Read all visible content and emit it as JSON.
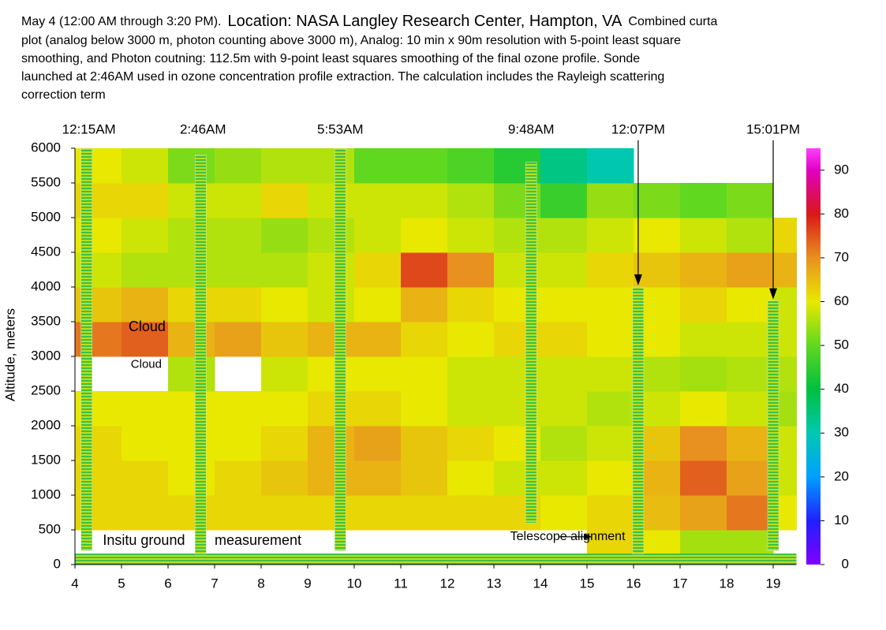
{
  "chart_data": {
    "type": "heatmap",
    "title": "May 4 (12:00 AM through 3:20 PM).",
    "location": "Location: NASA Langley Research Center, Hampton, VA",
    "title_suffix": "Combined curta",
    "description_lines": [
      "plot (analog below 3000 m, photon counting above 3000 m),  Analog: 10 min x 90m resolution with 5-point least square",
      "smoothing, and Photon coutning: 112.5m with 9-point least squares smoothing of the final ozone profile.  Sonde",
      "launched at 2:46AM used in ozone concentration profile extraction.  The calculation includes the Rayleigh scattering",
      "correction term"
    ],
    "y_label": "Altitude, meters",
    "xlim": [
      4,
      19.5
    ],
    "ylim": [
      0,
      6000
    ],
    "xticks": [
      4,
      5,
      6,
      7,
      8,
      9,
      10,
      11,
      12,
      13,
      14,
      15,
      16,
      17,
      18,
      19
    ],
    "yticks": [
      0,
      500,
      1000,
      1500,
      2000,
      2500,
      3000,
      3500,
      4000,
      4500,
      5000,
      5500,
      6000
    ],
    "x": [
      4,
      5,
      6,
      7,
      8,
      9,
      10,
      11,
      12,
      13,
      14,
      15,
      16,
      17,
      18,
      19,
      19.5
    ],
    "y": [
      0,
      500,
      1000,
      1500,
      2000,
      2500,
      3000,
      3500,
      4000,
      4500,
      5000,
      5500,
      6000
    ],
    "z": [
      [
        null,
        null,
        null,
        null,
        null,
        null,
        null,
        null,
        null,
        null,
        null,
        62,
        60,
        55,
        55,
        null
      ],
      [
        62,
        62,
        62,
        62,
        62,
        62,
        62,
        62,
        62,
        62,
        60,
        62,
        65,
        68,
        72,
        60
      ],
      [
        62,
        62,
        60,
        62,
        64,
        66,
        66,
        64,
        60,
        58,
        58,
        60,
        66,
        74,
        68,
        58
      ],
      [
        62,
        60,
        60,
        60,
        62,
        66,
        68,
        64,
        62,
        60,
        56,
        58,
        64,
        70,
        66,
        58
      ],
      [
        60,
        60,
        60,
        60,
        60,
        62,
        62,
        60,
        58,
        58,
        58,
        56,
        58,
        60,
        58,
        55
      ],
      [
        null,
        null,
        56,
        null,
        58,
        60,
        60,
        60,
        58,
        58,
        58,
        58,
        56,
        55,
        56,
        56
      ],
      [
        72,
        74,
        66,
        68,
        64,
        66,
        66,
        62,
        60,
        62,
        62,
        60,
        60,
        58,
        58,
        58
      ],
      [
        64,
        66,
        62,
        62,
        60,
        58,
        60,
        66,
        62,
        60,
        60,
        60,
        60,
        62,
        60,
        58
      ],
      [
        58,
        56,
        56,
        56,
        56,
        58,
        62,
        76,
        70,
        58,
        58,
        62,
        64,
        66,
        68,
        66
      ],
      [
        60,
        58,
        56,
        56,
        54,
        56,
        58,
        60,
        58,
        56,
        56,
        58,
        60,
        58,
        56,
        62
      ],
      [
        62,
        62,
        58,
        58,
        62,
        58,
        58,
        58,
        56,
        52,
        46,
        54,
        52,
        50,
        52,
        null
      ],
      [
        60,
        58,
        52,
        54,
        56,
        56,
        50,
        50,
        48,
        44,
        34,
        30,
        null,
        null,
        null,
        null
      ]
    ],
    "clim": [
      0,
      95
    ],
    "colorbar_ticks": [
      0,
      10,
      20,
      30,
      40,
      50,
      60,
      70,
      80,
      90
    ],
    "colorscale": [
      [
        0,
        "#8000ff"
      ],
      [
        10,
        "#2020ff"
      ],
      [
        20,
        "#00a0ff"
      ],
      [
        30,
        "#00c8b0"
      ],
      [
        40,
        "#00c040"
      ],
      [
        50,
        "#60d820"
      ],
      [
        60,
        "#e8e800"
      ],
      [
        70,
        "#e89020"
      ],
      [
        80,
        "#d81818"
      ],
      [
        90,
        "#e000c0"
      ],
      [
        95,
        "#ff40ff"
      ]
    ],
    "time_labels": [
      {
        "text": "12:15AM",
        "x": 4.3
      },
      {
        "text": "2:46AM",
        "x": 6.75
      },
      {
        "text": "5:53AM",
        "x": 9.7
      },
      {
        "text": "9:48AM",
        "x": 13.8
      },
      {
        "text": "12:07PM",
        "x": 16.1
      },
      {
        "text": "15:01PM",
        "x": 19.0
      }
    ],
    "profiles": [
      {
        "x": 4.25,
        "bottom": 200,
        "top": 6000
      },
      {
        "x": 6.7,
        "bottom": 150,
        "top": 5900
      },
      {
        "x": 9.7,
        "bottom": 200,
        "top": 6000
      },
      {
        "x": 13.8,
        "bottom": 600,
        "top": 5800
      },
      {
        "x": 16.1,
        "bottom": 150,
        "top": 4000
      },
      {
        "x": 19.0,
        "bottom": 200,
        "top": 3800
      }
    ],
    "annotations": [
      {
        "text": "Cloud",
        "x": 5.15,
        "y": 3420
      },
      {
        "text": "Cloud",
        "x": 5.2,
        "y": 2880
      },
      {
        "text": "Insitu ground",
        "x": 4.6,
        "y": 340
      },
      {
        "text": "measurement",
        "x": 7.0,
        "y": 340
      },
      {
        "text": "Telescope alignment",
        "x": 13.35,
        "y": 400
      }
    ]
  }
}
